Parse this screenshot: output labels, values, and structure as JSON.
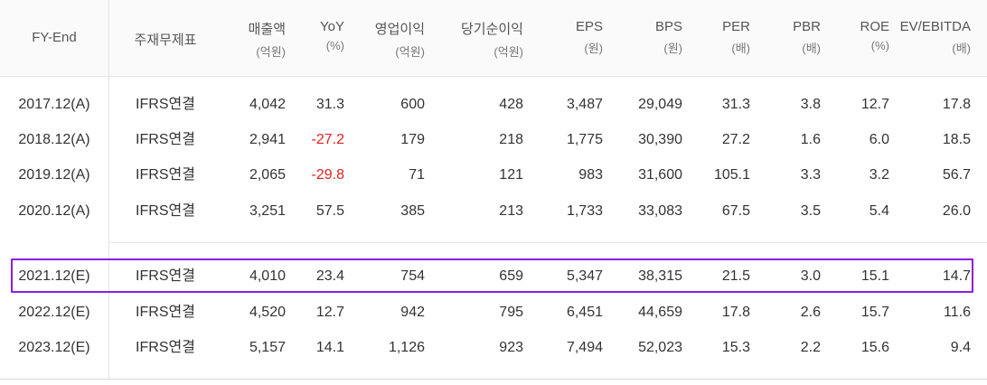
{
  "columns": [
    {
      "title": "FY-End",
      "unit": ""
    },
    {
      "title": "주재무제표",
      "unit": ""
    },
    {
      "title": "매출액",
      "unit": "(억원)"
    },
    {
      "title": "YoY",
      "unit": "(%)"
    },
    {
      "title": "영업이익",
      "unit": "(억원)"
    },
    {
      "title": "당기순이익",
      "unit": "(억원)"
    },
    {
      "title": "EPS",
      "unit": "(원)"
    },
    {
      "title": "BPS",
      "unit": "(원)"
    },
    {
      "title": "PER",
      "unit": "(배)"
    },
    {
      "title": "PBR",
      "unit": "(배)"
    },
    {
      "title": "ROE",
      "unit": "(%)"
    },
    {
      "title": "EV/EBITDA",
      "unit": "(배)"
    }
  ],
  "rows": [
    [
      "2017.12(A)",
      "IFRS연결",
      "4,042",
      "31.3",
      "600",
      "428",
      "3,487",
      "29,049",
      "31.3",
      "3.8",
      "12.7",
      "17.8"
    ],
    [
      "2018.12(A)",
      "IFRS연결",
      "2,941",
      "-27.2",
      "179",
      "218",
      "1,775",
      "30,390",
      "27.2",
      "1.6",
      "6.0",
      "18.5"
    ],
    [
      "2019.12(A)",
      "IFRS연결",
      "2,065",
      "-29.8",
      "71",
      "121",
      "983",
      "31,600",
      "105.1",
      "3.3",
      "3.2",
      "56.7"
    ],
    [
      "2020.12(A)",
      "IFRS연결",
      "3,251",
      "57.5",
      "385",
      "213",
      "1,733",
      "33,083",
      "67.5",
      "3.5",
      "5.4",
      "26.0"
    ],
    [
      "2021.12(E)",
      "IFRS연결",
      "4,010",
      "23.4",
      "754",
      "659",
      "5,347",
      "38,315",
      "21.5",
      "3.0",
      "15.1",
      "14.7"
    ],
    [
      "2022.12(E)",
      "IFRS연결",
      "4,520",
      "12.7",
      "942",
      "795",
      "6,451",
      "44,659",
      "17.8",
      "2.6",
      "15.7",
      "11.6"
    ],
    [
      "2023.12(E)",
      "IFRS연결",
      "5,157",
      "14.1",
      "1,126",
      "923",
      "7,494",
      "52,023",
      "15.3",
      "2.2",
      "15.6",
      "9.4"
    ]
  ],
  "colors": {
    "negative": "#e02020",
    "highlight_border": "#8b1fe0"
  }
}
